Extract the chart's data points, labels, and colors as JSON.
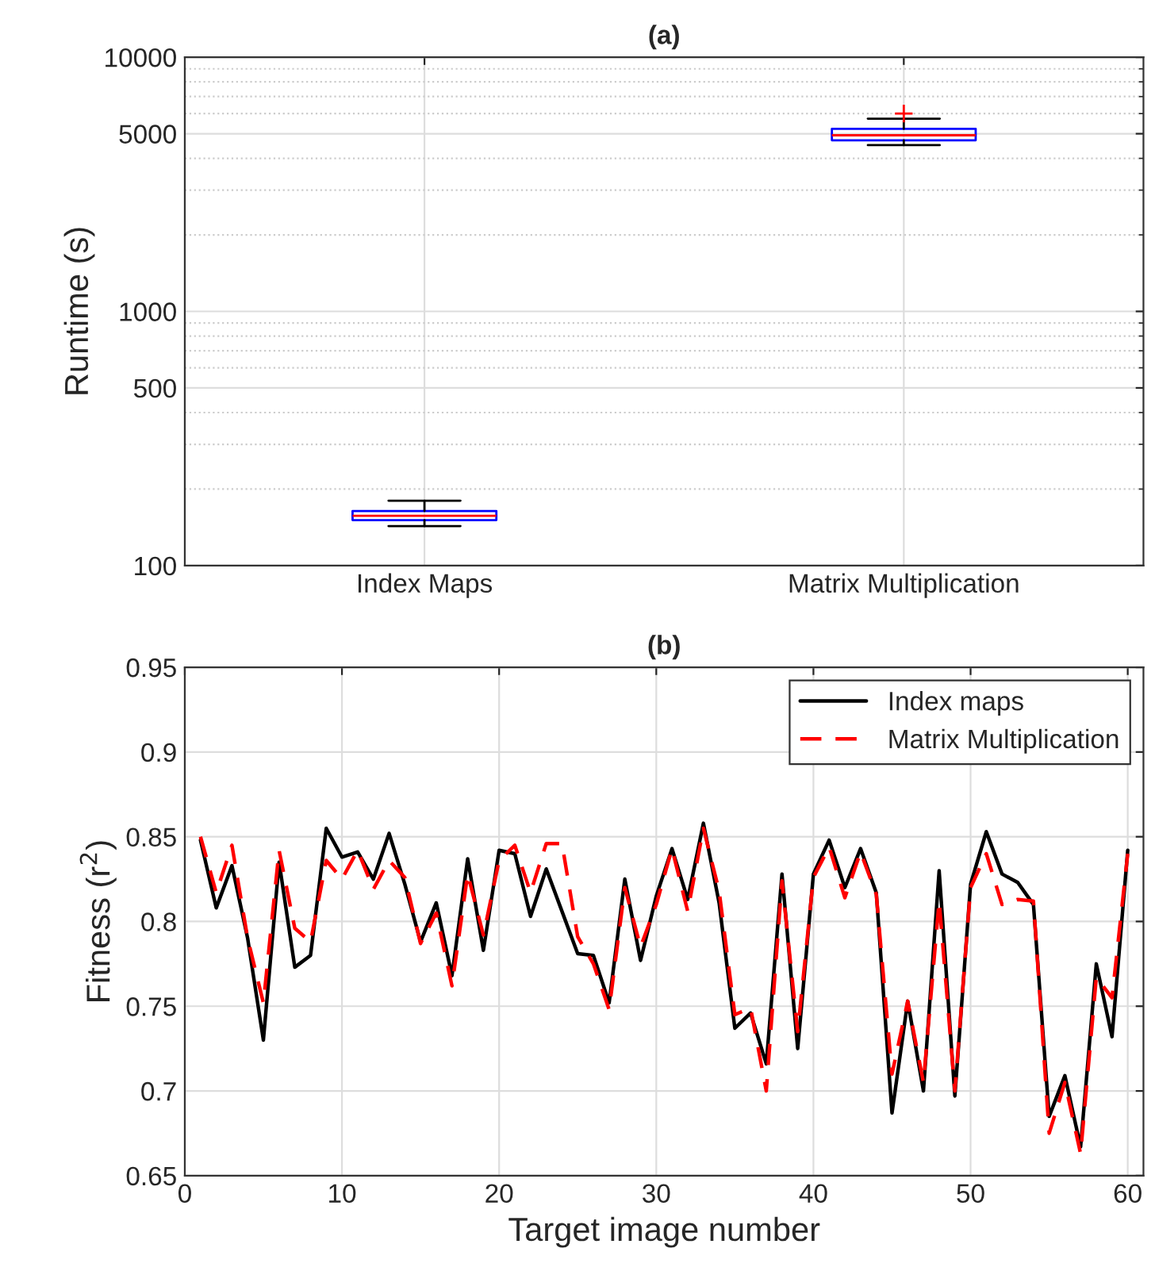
{
  "chart_data": [
    {
      "type": "box",
      "title": "(a)",
      "ylabel": "Runtime (s)",
      "categories": [
        "Index Maps",
        "Matrix Multiplication"
      ],
      "log": true,
      "ylim": [
        100,
        10000
      ],
      "yticks": [
        100,
        500,
        1000,
        5000,
        10000
      ],
      "grid": true,
      "series": [
        {
          "color": "#0000ff",
          "boxes": [
            {
              "low": 143,
              "q1": 151,
              "median": 157,
              "q3": 164,
              "high": 180
            },
            {
              "low": 4510,
              "q1": 4710,
              "median": 4930,
              "q3": 5230,
              "high": 5730,
              "outliers": [
                6000
              ]
            }
          ]
        }
      ]
    },
    {
      "type": "line",
      "title": "(b)",
      "xlabel": "Target image number",
      "ylabel": "Fitness (r$^{2}$)",
      "xlim": [
        0,
        61
      ],
      "xticks": [
        0,
        10,
        20,
        30,
        40,
        50,
        60
      ],
      "ylim": [
        0.65,
        0.95
      ],
      "yticks": [
        0.65,
        0.7,
        0.75,
        0.8,
        0.85,
        0.9,
        0.95
      ],
      "grid": true,
      "legend": "top right",
      "x": [
        1,
        2,
        3,
        4,
        5,
        6,
        7,
        8,
        9,
        10,
        11,
        12,
        13,
        14,
        15,
        16,
        17,
        18,
        19,
        20,
        21,
        22,
        23,
        24,
        25,
        26,
        27,
        28,
        29,
        30,
        31,
        32,
        33,
        34,
        35,
        36,
        37,
        38,
        39,
        40,
        41,
        42,
        43,
        44,
        45,
        46,
        47,
        48,
        49,
        50,
        51,
        52,
        53,
        54,
        55,
        56,
        57,
        58,
        59,
        60
      ],
      "series": [
        {
          "name": "Index maps",
          "color": "#000000",
          "line_style": "solid",
          "values": [
            0.848,
            0.808,
            0.833,
            0.79,
            0.73,
            0.835,
            0.773,
            0.78,
            0.855,
            0.838,
            0.841,
            0.825,
            0.852,
            0.822,
            0.788,
            0.811,
            0.768,
            0.837,
            0.783,
            0.842,
            0.84,
            0.803,
            0.831,
            0.806,
            0.781,
            0.78,
            0.752,
            0.825,
            0.777,
            0.815,
            0.843,
            0.813,
            0.858,
            0.811,
            0.737,
            0.746,
            0.716,
            0.828,
            0.725,
            0.828,
            0.848,
            0.82,
            0.843,
            0.817,
            0.687,
            0.753,
            0.7,
            0.83,
            0.697,
            0.822,
            0.853,
            0.828,
            0.823,
            0.81,
            0.685,
            0.709,
            0.667,
            0.775,
            0.732,
            0.842
          ]
        },
        {
          "name": "Matrix Multiplication",
          "color": "#ff0000",
          "line_style": "dashed",
          "values": [
            0.85,
            0.817,
            0.845,
            0.79,
            0.752,
            0.842,
            0.796,
            0.788,
            0.836,
            0.825,
            0.842,
            0.819,
            0.836,
            0.826,
            0.787,
            0.805,
            0.762,
            0.828,
            0.792,
            0.836,
            0.845,
            0.817,
            0.846,
            0.846,
            0.791,
            0.775,
            0.748,
            0.82,
            0.785,
            0.81,
            0.843,
            0.806,
            0.855,
            0.818,
            0.745,
            0.749,
            0.7,
            0.824,
            0.735,
            0.826,
            0.844,
            0.814,
            0.841,
            0.816,
            0.71,
            0.753,
            0.705,
            0.812,
            0.7,
            0.82,
            0.84,
            0.81,
            0.813,
            0.812,
            0.675,
            0.705,
            0.663,
            0.767,
            0.755,
            0.84
          ]
        }
      ]
    }
  ]
}
